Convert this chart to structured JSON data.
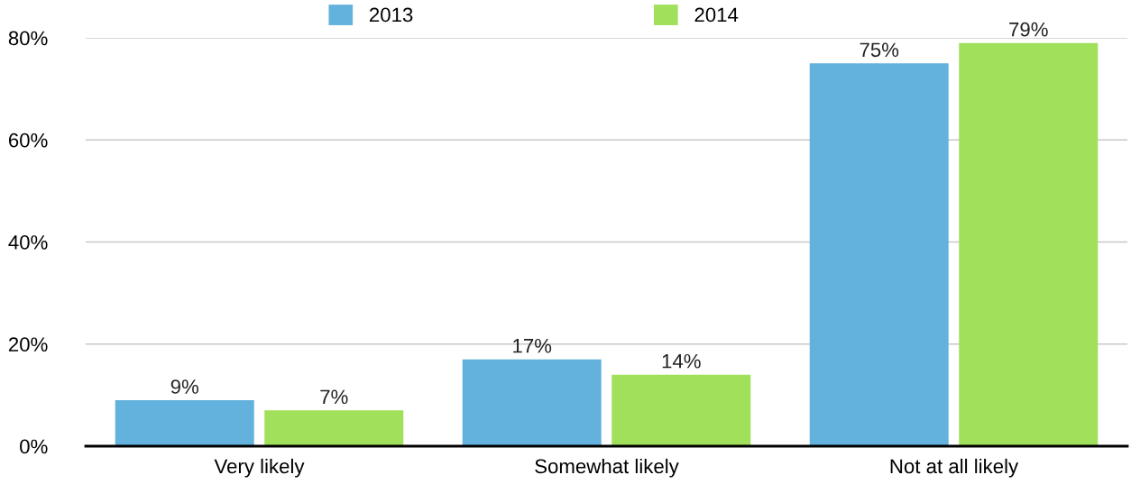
{
  "chart_data": {
    "type": "bar",
    "categories": [
      "Very likely",
      "Somewhat likely",
      "Not at all likely"
    ],
    "series": [
      {
        "name": "2013",
        "color": "#63b2dd",
        "values": [
          9,
          17,
          75
        ],
        "value_labels": [
          "9%",
          "17%",
          "75%"
        ]
      },
      {
        "name": "2014",
        "color": "#a0e05a",
        "values": [
          7,
          14,
          79
        ],
        "value_labels": [
          "7%",
          "14%",
          "79%"
        ]
      }
    ],
    "ylim": [
      0,
      80
    ],
    "yticks": [
      {
        "value": 0,
        "label": "0%"
      },
      {
        "value": 20,
        "label": "20%"
      },
      {
        "value": 40,
        "label": "40%"
      },
      {
        "value": 60,
        "label": "60%"
      },
      {
        "value": 80,
        "label": "80%"
      }
    ],
    "grid": "y",
    "legend": "top"
  }
}
